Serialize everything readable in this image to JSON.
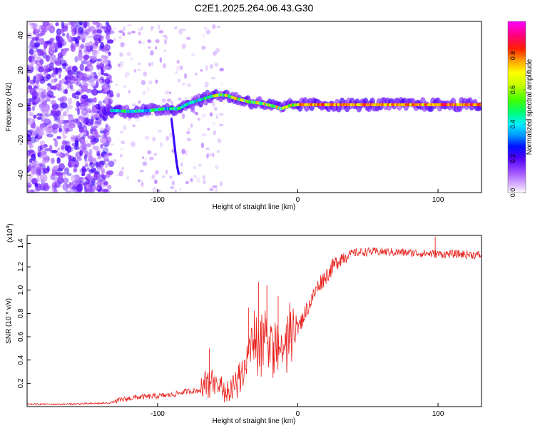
{
  "title": "C2E1.2025.264.06.43.G30",
  "chart_data": [
    {
      "type": "heatmap",
      "title": "C2E1.2025.264.06.43.G30",
      "xlabel": "Height of straight line (km)",
      "ylabel": "Frequency (Hz)",
      "xlim": [
        -193,
        131
      ],
      "ylim": [
        -50,
        48
      ],
      "xticks": [
        -100,
        0,
        100
      ],
      "xtick_labels": [
        "-100",
        "0",
        "100"
      ],
      "yticks": [
        -40,
        -20,
        0,
        20,
        40
      ],
      "ytick_labels": [
        "-40",
        "-20",
        "0",
        "20",
        "40"
      ],
      "ridge": {
        "x": [
          -133,
          -120,
          -105,
          -95,
          -85,
          -78,
          -70,
          -62,
          -55,
          -50,
          -45,
          -40,
          -35,
          -30,
          -25,
          -20,
          -15,
          -12,
          -8,
          -5,
          0,
          20,
          60,
          100,
          131
        ],
        "y": [
          -3,
          -3.5,
          -3,
          -2,
          -2,
          1,
          3,
          5,
          6,
          5.5,
          4,
          3,
          2,
          1.5,
          1,
          0,
          -1,
          -2,
          -1,
          0,
          0.3,
          0.3,
          0.3,
          0.3,
          0.3
        ]
      },
      "branch": {
        "x": [
          -90,
          -89,
          -88,
          -87,
          -86,
          -85
        ],
        "y": [
          -8,
          -15,
          -22,
          -29,
          -35,
          -39
        ]
      },
      "colorbar": {
        "label": "Normalized spectral amplitude",
        "range": [
          0,
          1
        ],
        "ticks": [
          0.0,
          0.2,
          0.4,
          0.6,
          0.8
        ],
        "tick_labels": [
          "0.0",
          "0.2",
          "0.4",
          "0.6",
          "0.8"
        ],
        "stops": [
          {
            "v": 0.0,
            "color": "#ffffff"
          },
          {
            "v": 0.03,
            "color": "#e6c8ff"
          },
          {
            "v": 0.12,
            "color": "#a050ff"
          },
          {
            "v": 0.2,
            "color": "#5000ff"
          },
          {
            "v": 0.27,
            "color": "#0010ff"
          },
          {
            "v": 0.33,
            "color": "#0090ff"
          },
          {
            "v": 0.4,
            "color": "#00f0ff"
          },
          {
            "v": 0.47,
            "color": "#00ff70"
          },
          {
            "v": 0.54,
            "color": "#40ff00"
          },
          {
            "v": 0.63,
            "color": "#c8ff00"
          },
          {
            "v": 0.7,
            "color": "#ffff00"
          },
          {
            "v": 0.77,
            "color": "#ffa000"
          },
          {
            "v": 0.84,
            "color": "#ff2000"
          },
          {
            "v": 0.92,
            "color": "#ff0080"
          },
          {
            "v": 1.0,
            "color": "#ff00ff"
          }
        ]
      }
    },
    {
      "type": "line",
      "xlabel": "Height of straight line (km)",
      "ylabel": "SNR (10 * v/v)",
      "scale_label": "(x10",
      "scale_exponent": "4",
      "scale_close": ")",
      "xlim": [
        -193,
        131
      ],
      "ylim": [
        0,
        1.47
      ],
      "xticks": [
        -100,
        0,
        100
      ],
      "xtick_labels": [
        "-100",
        "0",
        "100"
      ],
      "yticks": [
        0.2,
        0.4,
        0.6,
        0.8,
        1.0,
        1.2,
        1.4
      ],
      "ytick_labels": [
        "0.2",
        "0.4",
        "0.6",
        "0.8",
        "1.0",
        "1.2",
        "1.4"
      ],
      "color": "#e8201c",
      "series": {
        "name": "SNR",
        "x": [
          -193,
          -170,
          -150,
          -135,
          -125,
          -115,
          -100,
          -90,
          -80,
          -70,
          -65,
          -60,
          -55,
          -50,
          -45,
          -40,
          -35,
          -30,
          -25,
          -20,
          -15,
          -10,
          -5,
          0,
          5,
          10,
          15,
          20,
          25,
          30,
          35,
          40,
          50,
          60,
          80,
          100,
          115,
          131
        ],
        "y": [
          0.02,
          0.02,
          0.025,
          0.03,
          0.06,
          0.08,
          0.09,
          0.1,
          0.13,
          0.14,
          0.2,
          0.2,
          0.18,
          0.1,
          0.18,
          0.3,
          0.45,
          0.6,
          0.58,
          0.62,
          0.56,
          0.5,
          0.58,
          0.66,
          0.8,
          0.92,
          1.05,
          1.12,
          1.2,
          1.27,
          1.3,
          1.32,
          1.33,
          1.33,
          1.32,
          1.31,
          1.31,
          1.3
        ]
      },
      "spikes": [
        {
          "x": -63,
          "y": 0.5
        },
        {
          "x": -50,
          "y": 0.22
        },
        {
          "x": -35,
          "y": 0.85
        },
        {
          "x": -28,
          "y": 1.07
        },
        {
          "x": -22,
          "y": 1.04
        },
        {
          "x": -14,
          "y": 0.95
        },
        {
          "x": 98,
          "y": 1.46
        }
      ]
    }
  ]
}
